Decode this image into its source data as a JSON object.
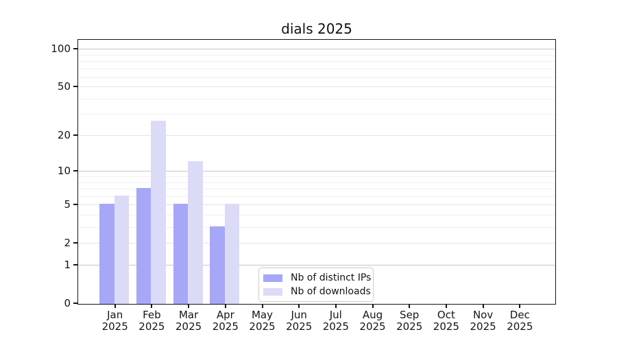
{
  "chart_data": {
    "type": "bar",
    "title": "dials 2025",
    "categories": [
      "Jan",
      "Feb",
      "Mar",
      "Apr",
      "May",
      "Jun",
      "Jul",
      "Aug",
      "Sep",
      "Oct",
      "Nov",
      "Dec"
    ],
    "x_year_label": "2025",
    "series": [
      {
        "name": "Nb of distinct IPs",
        "color": "#a7a7f7",
        "values": [
          5,
          7,
          5,
          3,
          0,
          0,
          0,
          0,
          0,
          0,
          0,
          0
        ]
      },
      {
        "name": "Nb of downloads",
        "color": "#dbdbf8",
        "values": [
          6,
          26,
          12,
          5,
          0,
          0,
          0,
          0,
          0,
          0,
          0,
          0
        ]
      }
    ],
    "yscale": "log1p",
    "ylim": [
      0,
      120
    ],
    "yticks_labeled": [
      100,
      50,
      20,
      10,
      5,
      2,
      1,
      0
    ],
    "yticks_minor": [
      90,
      80,
      70,
      60,
      40,
      30,
      9,
      8,
      7,
      6,
      4,
      3
    ],
    "grid": true,
    "legend_position": "inside-lower-center",
    "colors": {
      "axis": "#141414",
      "grid_major": "#c6c6c6",
      "grid_minor": "#efefef",
      "background": "#ffffff"
    }
  }
}
